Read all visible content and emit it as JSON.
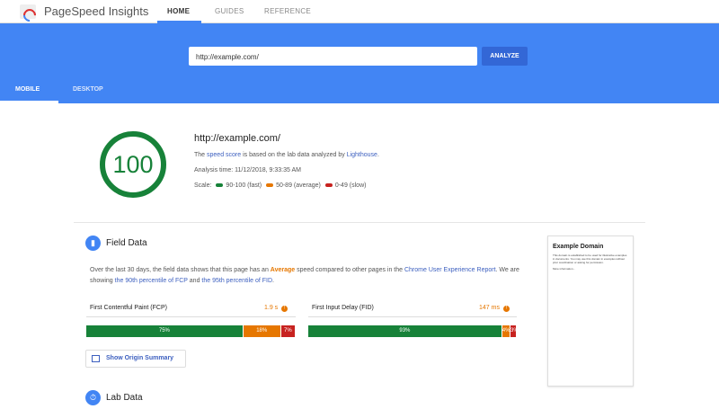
{
  "header": {
    "app_title": "PageSpeed Insights",
    "nav": [
      "HOME",
      "GUIDES",
      "REFERENCE"
    ],
    "active_nav": "HOME"
  },
  "search": {
    "url_value": "http://example.com/",
    "analyze_label": "ANALYZE"
  },
  "device_tabs": [
    "MOBILE",
    "DESKTOP"
  ],
  "summary": {
    "score": "100",
    "url": "http://example.com/",
    "line_pre": "The ",
    "speed_score": "speed score",
    "line_mid": " is based on the lab data analyzed by ",
    "lighthouse": "Lighthouse",
    "line_end": ".",
    "analysis_time": "Analysis time: 11/12/2018, 9:33:35 AM",
    "scale_label": "Scale:",
    "scale": [
      {
        "label": "90-100 (fast)",
        "color": "#178239"
      },
      {
        "label": "50-89 (average)",
        "color": "#e67700"
      },
      {
        "label": "0-49 (slow)",
        "color": "#c7221f"
      }
    ]
  },
  "field_data": {
    "title": "Field Data",
    "desc_1": "Over the last 30 days, the field data shows that this page has an ",
    "avg": "Average",
    "desc_2": " speed compared to other pages in the ",
    "crux": "Chrome User Experience Report",
    "desc_3": ". We are showing ",
    "fcp_link": "the 90th percentile of FCP",
    "desc_4": " and ",
    "fid_link": "the 95th percentile of FID",
    "desc_5": ".",
    "metrics": [
      {
        "name": "First Contentful Paint (FCP)",
        "value": "1.9 s",
        "dist": [
          {
            "pct": 75,
            "label": "75%"
          },
          {
            "pct": 18,
            "label": "18%"
          },
          {
            "pct": 7,
            "label": "7%"
          }
        ]
      },
      {
        "name": "First Input Delay (FID)",
        "value": "147 ms",
        "dist": [
          {
            "pct": 93,
            "label": "93%"
          },
          {
            "pct": 4,
            "label": "4%"
          },
          {
            "pct": 3,
            "label": "3%"
          }
        ]
      }
    ],
    "origin_button": "Show Origin Summary"
  },
  "lab_data": {
    "title": "Lab Data"
  },
  "thumbnail": {
    "title": "Example Domain",
    "body": "This domain is established to be used for illustrative examples in documents. You may use this domain in examples without prior coordination or asking for permission.",
    "more": "More information..."
  }
}
